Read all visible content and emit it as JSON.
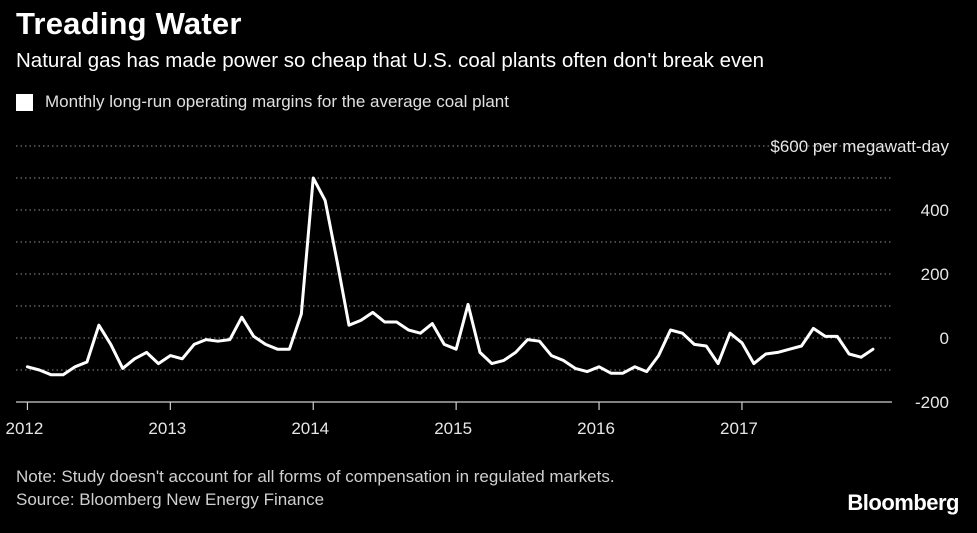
{
  "header": {
    "title": "Treading Water",
    "subtitle": "Natural gas has made power so cheap that U.S. coal plants often don't break even"
  },
  "legend": {
    "label": "Monthly long-run operating margins for the average coal plant",
    "color": "#ffffff"
  },
  "footer": {
    "note": "Note: Study doesn't account for all forms of compensation in regulated markets.",
    "source": "Source: Bloomberg New Energy Finance"
  },
  "brand": {
    "logo_text": "Bloomberg"
  },
  "colors": {
    "background": "#000000",
    "line": "#ffffff",
    "grid": "#8c8c8c",
    "text": "#ffffff"
  },
  "chart_data": {
    "type": "line",
    "title": "Treading Water",
    "subtitle": "Natural gas has made power so cheap that U.S. coal plants often don't break even",
    "xlabel": "",
    "ylabel": "$ per megawatt-day",
    "x_start": 2012.0,
    "x_step_months": 1,
    "xlim": [
      2011.92,
      2018.05
    ],
    "ylim": [
      -200,
      600
    ],
    "grid": true,
    "grid_style": "dotted",
    "y_axis_side": "right",
    "legend_position": "top-left",
    "x_ticks": [
      2012,
      2013,
      2014,
      2015,
      2016,
      2017
    ],
    "x_tick_labels": [
      "2012",
      "2013",
      "2014",
      "2015",
      "2016",
      "2017"
    ],
    "y_ticks": [
      -200,
      0,
      200,
      400,
      600
    ],
    "y_tick_labels": [
      "-200",
      "0",
      "200",
      "400",
      "$600 per megawatt-day"
    ],
    "series": [
      {
        "name": "Monthly long-run operating margins for the average coal plant",
        "values": [
          -90,
          -100,
          -115,
          -115,
          -90,
          -75,
          40,
          -20,
          -95,
          -65,
          -45,
          -80,
          -55,
          -65,
          -20,
          -5,
          -10,
          -5,
          65,
          5,
          -20,
          -35,
          -35,
          75,
          500,
          430,
          240,
          40,
          55,
          80,
          50,
          50,
          25,
          15,
          45,
          -20,
          -35,
          105,
          -45,
          -80,
          -70,
          -45,
          -5,
          -10,
          -55,
          -70,
          -95,
          -105,
          -90,
          -110,
          -110,
          -90,
          -105,
          -55,
          25,
          15,
          -20,
          -25,
          -80,
          15,
          -15,
          -80,
          -50,
          -45,
          -35,
          -25,
          30,
          5,
          5,
          -50,
          -60,
          -35
        ]
      }
    ]
  }
}
